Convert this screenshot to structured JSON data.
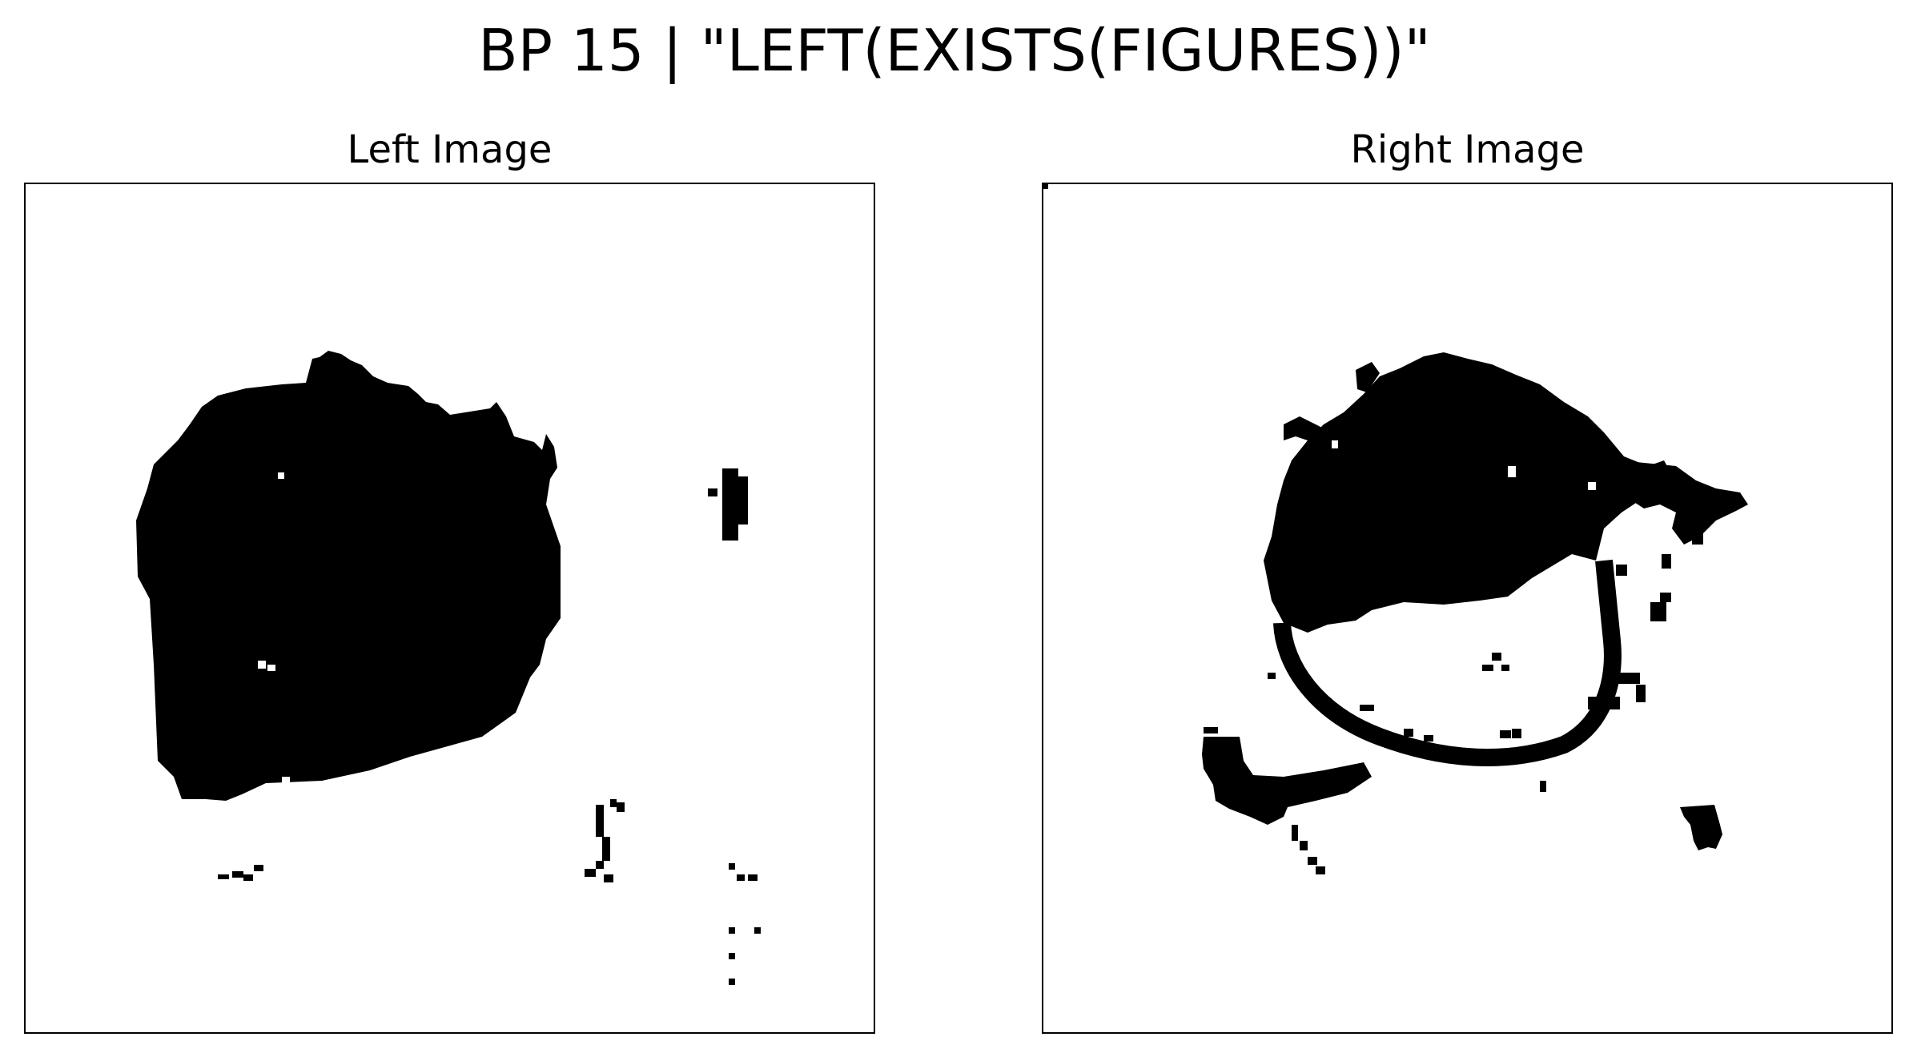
{
  "figure": {
    "title": "BP 15 | \"LEFT(EXISTS(FIGURES))\""
  },
  "panels": {
    "left": {
      "title": "Left Image"
    },
    "right": {
      "title": "Right Image"
    }
  },
  "colors": {
    "ink": "#000000",
    "background": "#ffffff"
  }
}
